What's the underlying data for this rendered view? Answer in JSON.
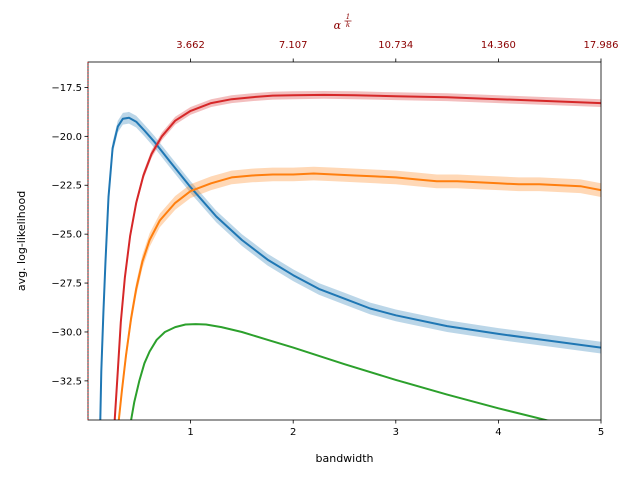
{
  "chart_data": {
    "type": "line",
    "title": "",
    "xlabel": "bandwidth",
    "ylabel": "avg. log-likelihood",
    "top_xlabel": "α^(1/k)",
    "top_xlabel_base": "α",
    "top_xlabel_exp_num": "1",
    "top_xlabel_exp_den": "k",
    "xlim": [
      0.0,
      5.0
    ],
    "ylim": [
      -34.5,
      -16.2
    ],
    "x_ticks": [
      1,
      2,
      3,
      4,
      5
    ],
    "x_tick_labels": [
      "1",
      "2",
      "3",
      "4",
      "5"
    ],
    "y_ticks": [
      -32.5,
      -30.0,
      -27.5,
      -25.0,
      -22.5,
      -20.0,
      -17.5
    ],
    "y_tick_labels": [
      "−32.5",
      "−30.0",
      "−27.5",
      "−25.0",
      "−22.5",
      "−20.0",
      "−17.5"
    ],
    "top_ticks": [
      1.0,
      2.0,
      3.0,
      4.0,
      5.0
    ],
    "top_tick_labels": [
      "3.662",
      "7.107",
      "10.734",
      "14.360",
      "17.986"
    ],
    "grid": false,
    "legend": "none",
    "series": [
      {
        "color": "#1f77b4",
        "band": 0.3,
        "x": [
          0.12,
          0.13,
          0.15,
          0.17,
          0.2,
          0.24,
          0.29,
          0.34,
          0.4,
          0.47,
          0.55,
          0.65,
          0.8,
          1.0,
          1.25,
          1.5,
          1.75,
          2.0,
          2.25,
          2.5,
          2.75,
          3.0,
          3.5,
          4.0,
          4.5,
          5.0
        ],
        "y": [
          -34.5,
          -32.0,
          -29.0,
          -26.5,
          -23.1,
          -20.6,
          -19.5,
          -19.1,
          -19.05,
          -19.25,
          -19.7,
          -20.3,
          -21.3,
          -22.6,
          -24.1,
          -25.3,
          -26.3,
          -27.1,
          -27.8,
          -28.3,
          -28.8,
          -29.15,
          -29.7,
          -30.1,
          -30.45,
          -30.8
        ]
      },
      {
        "color": "#ff7f0e",
        "band": 0.35,
        "x": [
          0.3,
          0.33,
          0.37,
          0.42,
          0.47,
          0.53,
          0.6,
          0.7,
          0.85,
          1.0,
          1.2,
          1.4,
          1.6,
          1.8,
          2.0,
          2.2,
          2.4,
          2.6,
          2.8,
          3.0,
          3.2,
          3.4,
          3.6,
          3.8,
          4.0,
          4.2,
          4.4,
          4.6,
          4.8,
          5.0
        ],
        "y": [
          -34.5,
          -33.0,
          -31.2,
          -29.3,
          -27.8,
          -26.4,
          -25.3,
          -24.3,
          -23.4,
          -22.8,
          -22.4,
          -22.1,
          -22.0,
          -21.95,
          -21.95,
          -21.9,
          -21.95,
          -22.0,
          -22.05,
          -22.1,
          -22.2,
          -22.3,
          -22.3,
          -22.35,
          -22.4,
          -22.45,
          -22.45,
          -22.5,
          -22.55,
          -22.75
        ]
      },
      {
        "color": "#d62728",
        "band": 0.2,
        "x": [
          0.26,
          0.29,
          0.32,
          0.36,
          0.41,
          0.47,
          0.54,
          0.62,
          0.72,
          0.85,
          1.0,
          1.2,
          1.4,
          1.6,
          1.8,
          2.0,
          2.3,
          2.6,
          3.0,
          3.5,
          4.0,
          4.5,
          5.0
        ],
        "y": [
          -34.5,
          -32.0,
          -29.5,
          -27.2,
          -25.1,
          -23.4,
          -22.0,
          -20.9,
          -20.0,
          -19.2,
          -18.7,
          -18.3,
          -18.1,
          -18.0,
          -17.92,
          -17.9,
          -17.88,
          -17.9,
          -17.95,
          -18.0,
          -18.1,
          -18.2,
          -18.3
        ]
      },
      {
        "color": "#2ca02c",
        "band": 0,
        "x": [
          0.42,
          0.45,
          0.5,
          0.55,
          0.6,
          0.67,
          0.75,
          0.85,
          0.95,
          1.05,
          1.15,
          1.3,
          1.5,
          1.75,
          2.0,
          2.5,
          3.0,
          3.5,
          4.0,
          4.5,
          4.9
        ],
        "y": [
          -34.5,
          -33.6,
          -32.5,
          -31.6,
          -31.0,
          -30.4,
          -30.0,
          -29.75,
          -29.62,
          -29.6,
          -29.62,
          -29.75,
          -30.0,
          -30.4,
          -30.8,
          -31.65,
          -32.45,
          -33.2,
          -33.9,
          -34.55,
          -35.05
        ]
      }
    ]
  }
}
